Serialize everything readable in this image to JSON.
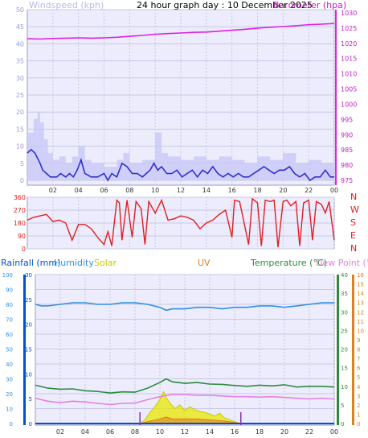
{
  "header": {
    "title": "24 hour graph day : 10 December 2025",
    "windspeed_label": "Windspeed (kph)",
    "barometer_label": "Barometer (hpa)"
  },
  "direction_labels": [
    "N",
    "W",
    "S",
    "E",
    "N"
  ],
  "bottom_legend": {
    "rainfall": "Rainfall (mm)",
    "humidity": "Humidity",
    "solar": "Solar",
    "uv": "UV",
    "temperature": "Temperature (°C)",
    "dewpoint": "Dew Point (°C)"
  },
  "colors": {
    "windspeed": "#3030d0",
    "gust": "#c8c8f8",
    "barometer": "#e020e0",
    "direction": "#e02020",
    "humidity": "#3090e0",
    "temperature": "#2e8b3e",
    "dewpoint": "#e680e6",
    "solar": "#d8d800",
    "uv": "#e08020",
    "rain": "#0050d0",
    "grid": "#c8c8e6",
    "panel": "#ececfc"
  },
  "chart_data": [
    {
      "type": "line",
      "title": "24 hour graph day : 10 December 2025",
      "x_ticks": [
        "02",
        "04",
        "06",
        "08",
        "10",
        "12",
        "14",
        "16",
        "18",
        "20",
        "22",
        "00"
      ],
      "xlim": [
        0,
        24
      ],
      "left_axis": {
        "label": "Windspeed (kph)",
        "ylim": [
          0,
          50
        ],
        "ticks": [
          0,
          5,
          10,
          15,
          20,
          25,
          30,
          35,
          40,
          45,
          50
        ]
      },
      "right_axis": {
        "label": "Barometer (hpa)",
        "ylim": [
          975,
          1030
        ],
        "ticks": [
          975,
          980,
          985,
          990,
          995,
          1000,
          1005,
          1010,
          1015,
          1020,
          1025,
          1030
        ]
      },
      "series": [
        {
          "name": "Windspeed (kph)",
          "axis": "left",
          "x": [
            0,
            0.3,
            0.6,
            1,
            1.2,
            1.5,
            1.8,
            2,
            2.3,
            2.6,
            3,
            3.3,
            3.6,
            3.9,
            4.2,
            4.5,
            5,
            5.5,
            6,
            6.3,
            6.6,
            7,
            7.4,
            7.8,
            8.2,
            8.6,
            9,
            9.3,
            9.6,
            9.9,
            10.2,
            10.5,
            10.9,
            11.3,
            11.7,
            12.1,
            12.5,
            12.9,
            13.3,
            13.7,
            14.1,
            14.5,
            14.9,
            15.3,
            15.7,
            16.1,
            16.5,
            16.9,
            17.3,
            17.7,
            18.1,
            18.5,
            18.9,
            19.3,
            19.7,
            20.1,
            20.5,
            20.9,
            21.3,
            21.7,
            22.1,
            22.5,
            22.9,
            23.3,
            23.7,
            24
          ],
          "values": [
            8,
            9,
            8,
            5,
            3,
            2,
            1,
            1,
            1,
            2,
            1,
            2,
            1,
            3,
            6,
            2,
            1,
            1,
            2,
            0,
            2,
            1,
            5,
            4,
            2,
            2,
            1,
            2,
            3,
            5,
            3,
            4,
            2,
            2,
            3,
            1,
            2,
            3,
            1,
            3,
            2,
            4,
            2,
            1,
            2,
            1,
            2,
            1,
            1,
            2,
            3,
            4,
            3,
            2,
            3,
            3,
            4,
            2,
            1,
            2,
            0,
            1,
            1,
            3,
            1,
            1
          ]
        },
        {
          "name": "Gust (kph)",
          "axis": "left",
          "x": [
            0,
            0.5,
            0.8,
            1,
            1.3,
            1.6,
            2,
            2.5,
            3,
            3.5,
            4,
            4.5,
            5,
            6,
            7,
            7.5,
            8,
            9,
            10,
            10.5,
            11,
            12,
            13,
            14,
            15,
            16,
            17,
            18,
            19,
            20,
            21,
            22,
            23,
            24
          ],
          "values": [
            14,
            18,
            20,
            17,
            12,
            8,
            6,
            7,
            5,
            7,
            10,
            6,
            5,
            4,
            6,
            8,
            5,
            6,
            14,
            8,
            7,
            6,
            7,
            6,
            7,
            6,
            5,
            7,
            6,
            8,
            5,
            6,
            5,
            4
          ]
        },
        {
          "name": "Barometer (hpa)",
          "axis": "right",
          "x": [
            0,
            1,
            2,
            3,
            4,
            5,
            6,
            7,
            8,
            9,
            10,
            11,
            12,
            13,
            14,
            15,
            16,
            17,
            18,
            19,
            20,
            21,
            22,
            23,
            24
          ],
          "values": [
            1021.5,
            1021.4,
            1021.6,
            1021.7,
            1021.8,
            1021.7,
            1021.8,
            1022,
            1022.3,
            1022.6,
            1023,
            1023.2,
            1023.4,
            1023.6,
            1023.7,
            1024,
            1024.3,
            1024.6,
            1025,
            1025.3,
            1025.5,
            1025.8,
            1026.1,
            1026.3,
            1026.5
          ]
        }
      ]
    },
    {
      "type": "scatter",
      "title": "",
      "x_ticks": [
        "02",
        "04",
        "06",
        "08",
        "10",
        "12",
        "14",
        "16",
        "18",
        "20",
        "22",
        "00"
      ],
      "xlim": [
        0,
        24
      ],
      "left_axis": {
        "label": "",
        "ylim": [
          0,
          360
        ],
        "ticks": [
          0,
          90,
          180,
          270,
          360
        ]
      },
      "right_axis": {
        "label": "",
        "ylim": [
          0,
          360
        ],
        "tick_labels": [
          "N",
          "W",
          "S",
          "E",
          "N"
        ]
      },
      "series": [
        {
          "name": "Wind direction",
          "x": [
            0,
            0.5,
            1,
            1.5,
            2,
            2.5,
            3,
            3.5,
            4,
            4.5,
            5,
            5.5,
            6,
            6.3,
            6.6,
            7,
            7.2,
            7.4,
            7.8,
            8.2,
            8.5,
            8.9,
            9.2,
            9.5,
            10,
            10.5,
            11,
            11.5,
            12,
            12.5,
            13,
            13.5,
            14,
            14.5,
            15,
            15.5,
            16,
            16.2,
            16.6,
            17,
            17.3,
            17.6,
            18,
            18.3,
            18.6,
            19,
            19.3,
            19.6,
            20,
            20.3,
            20.6,
            21,
            21.3,
            21.6,
            22,
            22.3,
            22.6,
            23,
            23.3,
            23.6,
            24
          ],
          "values": [
            200,
            220,
            230,
            240,
            190,
            200,
            180,
            60,
            170,
            170,
            140,
            80,
            30,
            120,
            20,
            340,
            320,
            60,
            340,
            80,
            330,
            280,
            30,
            330,
            250,
            340,
            200,
            210,
            230,
            220,
            200,
            140,
            180,
            200,
            240,
            270,
            80,
            340,
            330,
            160,
            30,
            350,
            320,
            20,
            340,
            330,
            340,
            10,
            330,
            340,
            300,
            330,
            20,
            320,
            340,
            60,
            330,
            310,
            250,
            330,
            60
          ]
        }
      ]
    },
    {
      "type": "line",
      "title": "",
      "x_ticks": [
        "02",
        "04",
        "06",
        "08",
        "10",
        "12",
        "14",
        "16",
        "18",
        "20",
        "22",
        "00"
      ],
      "xlim": [
        0,
        24
      ],
      "axes": {
        "humidity": {
          "ylim": [
            0,
            100
          ],
          "ticks": [
            0,
            10,
            20,
            30,
            40,
            50,
            60,
            70,
            80,
            90,
            100
          ]
        },
        "rainfall": {
          "ylim": [
            0,
            30
          ],
          "ticks": [
            0,
            5,
            10,
            15,
            20,
            25,
            30
          ]
        },
        "temperature": {
          "ylim": [
            0,
            40
          ],
          "ticks": [
            0,
            5,
            10,
            15,
            20,
            25,
            30,
            35,
            40
          ]
        },
        "uv": {
          "ylim": [
            0,
            16
          ],
          "ticks": [
            0,
            1,
            2,
            3,
            4,
            5,
            6,
            7,
            8,
            9,
            10,
            11,
            12,
            13,
            14,
            15,
            16
          ]
        }
      },
      "series": [
        {
          "name": "Humidity",
          "axis": "humidity",
          "x": [
            0,
            0.5,
            1,
            2,
            3,
            4,
            5,
            6,
            7,
            8,
            9,
            9.5,
            10,
            10.5,
            11,
            12,
            13,
            14,
            15,
            16,
            17,
            18,
            19,
            20,
            21,
            22,
            23,
            24
          ],
          "values": [
            80,
            79,
            79,
            80,
            81,
            81,
            80,
            80,
            81,
            81,
            80,
            79,
            78,
            76,
            77,
            77,
            78,
            78,
            77,
            78,
            78,
            79,
            79,
            78,
            79,
            80,
            81,
            81
          ]
        },
        {
          "name": "Temperature (°C)",
          "axis": "temperature",
          "x": [
            0,
            1,
            2,
            3,
            4,
            5,
            6,
            7,
            8,
            9,
            10,
            10.5,
            11,
            12,
            13,
            14,
            15,
            16,
            17,
            18,
            19,
            20,
            21,
            22,
            23,
            24
          ],
          "values": [
            10.3,
            9.5,
            9.2,
            9.3,
            8.8,
            8.6,
            8.2,
            8.5,
            8.4,
            9.5,
            11,
            12,
            11.2,
            10.8,
            11,
            10.6,
            10.5,
            10.2,
            10,
            10.3,
            10.1,
            10.4,
            9.8,
            10,
            10,
            9.8
          ]
        },
        {
          "name": "Dew Point (°C)",
          "axis": "temperature",
          "x": [
            0,
            1,
            2,
            3,
            4,
            5,
            6,
            7,
            8,
            9,
            10,
            11,
            12,
            13,
            14,
            15,
            16,
            17,
            18,
            19,
            20,
            21,
            22,
            23,
            24
          ],
          "values": [
            6.8,
            6,
            5.6,
            6,
            5.8,
            5.4,
            5.1,
            5.4,
            5.5,
            6.4,
            7.2,
            7.8,
            7.8,
            7.6,
            7.6,
            7.4,
            7.2,
            7.2,
            7.1,
            7.2,
            7,
            6.8,
            6.6,
            6.8,
            6.6
          ]
        },
        {
          "name": "Solar",
          "axis": "uv",
          "type": "area",
          "x": [
            8.4,
            8.8,
            9.2,
            9.6,
            10,
            10.3,
            10.5,
            10.8,
            11.2,
            11.6,
            12,
            12.4,
            12.8,
            13.2,
            13.6,
            14,
            14.4,
            14.8,
            15.2,
            15.6,
            16,
            16.5
          ],
          "values": [
            0,
            0.4,
            1.2,
            1.8,
            2.6,
            3.4,
            2.8,
            2.2,
            1.6,
            2.0,
            1.4,
            1.8,
            1.5,
            1.3,
            1.2,
            1.0,
            0.8,
            1.1,
            0.6,
            0.4,
            0.2,
            0
          ]
        },
        {
          "name": "UV",
          "axis": "uv",
          "x": [
            8.4,
            9,
            10,
            10.5,
            11,
            12,
            13,
            14,
            15,
            16,
            16.5
          ],
          "values": [
            0,
            0.2,
            0.5,
            0.7,
            0.5,
            0.5,
            0.5,
            0.4,
            0.3,
            0.1,
            0
          ]
        },
        {
          "name": "Rainfall (mm)",
          "axis": "rainfall",
          "x": [
            0,
            24
          ],
          "values": [
            0,
            0
          ]
        }
      ]
    }
  ]
}
